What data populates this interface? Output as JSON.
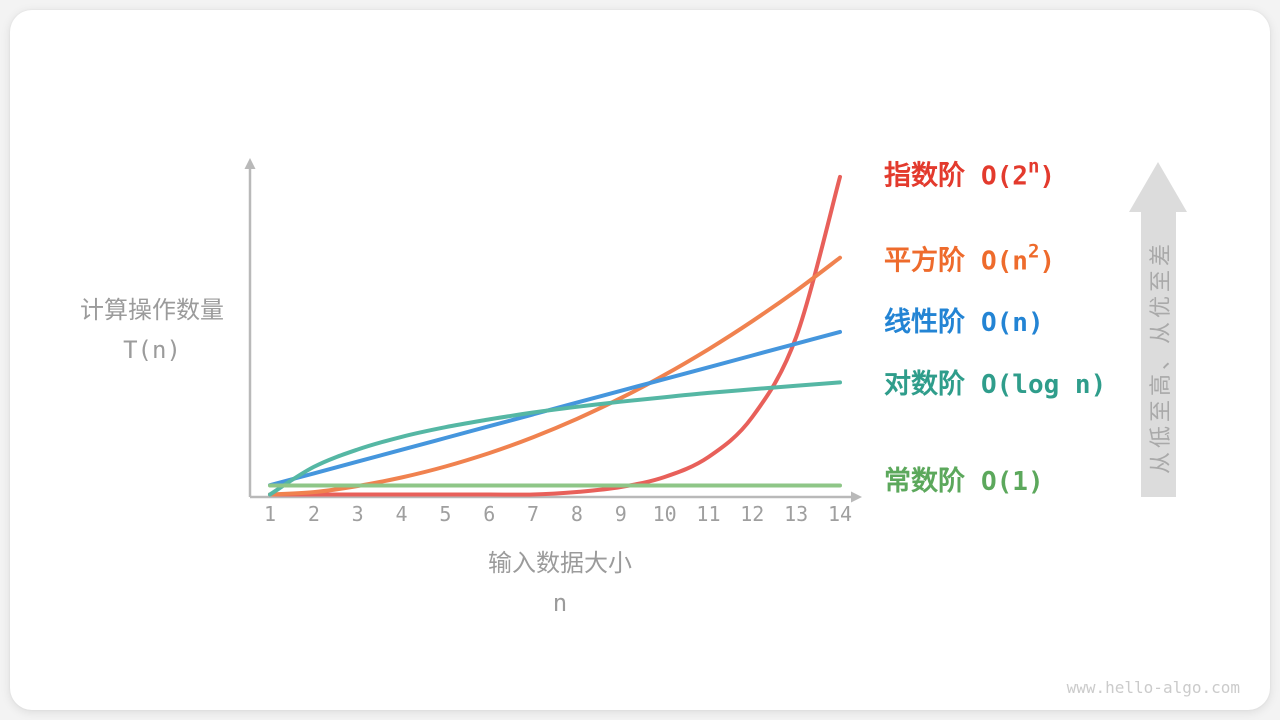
{
  "figure": {
    "watermark": "www.hello-algo.com",
    "trend_arrow_label": "从低至高、从优至差"
  },
  "chart_data": {
    "type": "line",
    "title": "",
    "xlabel": "输入数据大小",
    "xlabel_symbol": "n",
    "ylabel": "计算操作数量",
    "ylabel_symbol": "T(n)",
    "x_ticks": [
      "1",
      "2",
      "3",
      "4",
      "5",
      "6",
      "7",
      "8",
      "9",
      "10",
      "11",
      "12",
      "13",
      "14"
    ],
    "x_range": [
      1,
      14
    ],
    "grid": false,
    "legend_position": "right",
    "axis_color": "#b9b9b9",
    "trend_arrow_color": "#dcdcdc",
    "series": [
      {
        "id": "exponential",
        "label": "指数阶",
        "big_o": "O(2ⁿ)",
        "o_main": "O(2",
        "o_sup": "n",
        "o_close": ")",
        "curve_color": "#e8605a",
        "label_color": "#e33a2d",
        "values": [
          2,
          4,
          8,
          16,
          32,
          64,
          128,
          256,
          512,
          1024,
          2048,
          4096,
          8192,
          16384
        ],
        "peak_fraction": 0.95
      },
      {
        "id": "quadratic",
        "label": "平方阶",
        "big_o": "O(n²)",
        "o_main": "O(n",
        "o_sup": "2",
        "o_close": ")",
        "curve_color": "#f0824f",
        "label_color": "#ee6b2c",
        "values": [
          1,
          4,
          9,
          16,
          25,
          36,
          49,
          64,
          81,
          100,
          121,
          144,
          169,
          196
        ],
        "peak_fraction": 0.71
      },
      {
        "id": "linear",
        "label": "线性阶",
        "big_o": "O(n)",
        "o_main": "O(n)",
        "o_sup": "",
        "o_close": "",
        "curve_color": "#4596dd",
        "label_color": "#2384d4",
        "values": [
          1,
          2,
          3,
          4,
          5,
          6,
          7,
          8,
          9,
          10,
          11,
          12,
          13,
          14
        ],
        "peak_fraction": 0.49
      },
      {
        "id": "logarithmic",
        "label": "对数阶",
        "big_o": "O(log n)",
        "o_main": "O(log n)",
        "o_sup": "",
        "o_close": "",
        "curve_color": "#55b7a4",
        "label_color": "#2f9d8b",
        "values": [
          0,
          1,
          1.58,
          2,
          2.32,
          2.58,
          2.81,
          3,
          3.17,
          3.32,
          3.46,
          3.58,
          3.7,
          3.81
        ],
        "peak_fraction": 0.34
      },
      {
        "id": "constant",
        "label": "常数阶",
        "big_o": "O(1)",
        "o_main": "O(1)",
        "o_sup": "",
        "o_close": "",
        "curve_color": "#8ec687",
        "label_color": "#5ca85c",
        "values": [
          1,
          1,
          1,
          1,
          1,
          1,
          1,
          1,
          1,
          1,
          1,
          1,
          1,
          1
        ],
        "peak_fraction": 0.034
      }
    ]
  }
}
